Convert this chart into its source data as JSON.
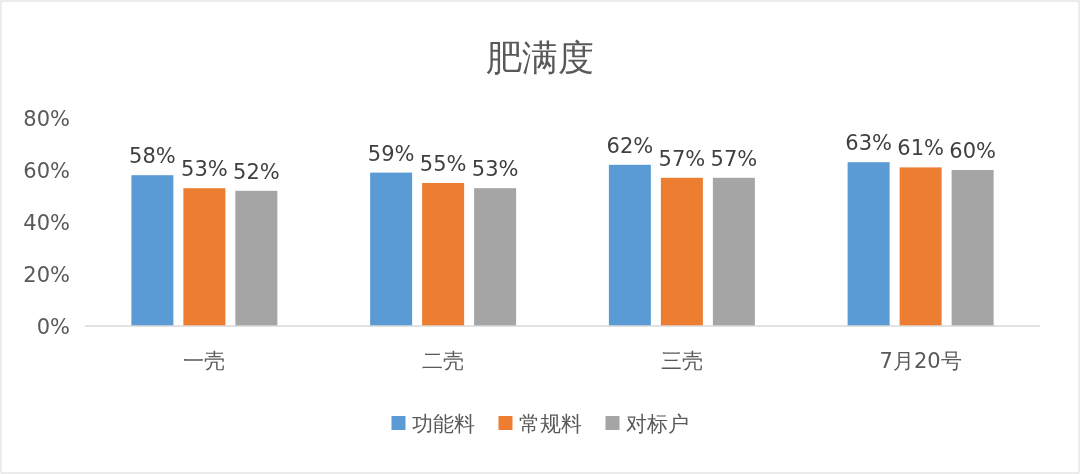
{
  "chart_data": {
    "type": "bar",
    "title": "肥满度",
    "categories": [
      "一壳",
      "二壳",
      "三壳",
      "7月20号"
    ],
    "series": [
      {
        "name": "功能料",
        "color": "#5b9bd5",
        "values": [
          58,
          59,
          62,
          63
        ],
        "value_labels": [
          "58%",
          "59%",
          "62%",
          "63%"
        ]
      },
      {
        "name": "常规料",
        "color": "#ed7d31",
        "values": [
          53,
          55,
          57,
          61
        ],
        "value_labels": [
          "53%",
          "55%",
          "57%",
          "61%"
        ]
      },
      {
        "name": "对标户",
        "color": "#a5a5a5",
        "values": [
          52,
          53,
          57,
          60
        ],
        "value_labels": [
          "52%",
          "53%",
          "57%",
          "60%"
        ]
      }
    ],
    "ylim": [
      0,
      80
    ],
    "yticks": [
      {
        "value": 0,
        "label": "0%"
      },
      {
        "value": 20,
        "label": "20%"
      },
      {
        "value": 40,
        "label": "40%"
      },
      {
        "value": 60,
        "label": "60%"
      },
      {
        "value": 80,
        "label": "80%"
      }
    ],
    "grid": false,
    "legend": "bottom"
  }
}
